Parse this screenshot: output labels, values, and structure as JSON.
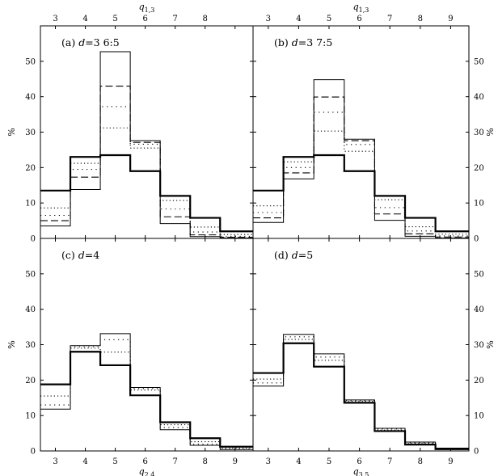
{
  "chart_data": [
    {
      "type": "step",
      "panel_label": "(a) d=3 6:5",
      "label_prefix": "(a) ",
      "label_var": "d",
      "label_rest": "=3 6:5",
      "x_ticks": [
        3,
        4,
        5,
        6,
        7,
        8
      ],
      "x_ticks_top": [
        3,
        4,
        5,
        6,
        7,
        8
      ],
      "top_xlabel": "q",
      "top_xlabel_sub": "1,3",
      "ylabel": "%",
      "ylim": [
        0,
        60
      ],
      "y_ticks": [
        0,
        10,
        20,
        30,
        40,
        50
      ],
      "bins": [
        3,
        4,
        5,
        6,
        7,
        8,
        9
      ],
      "series": [
        {
          "style": "thick",
          "values": [
            13.5,
            23,
            23.5,
            19,
            12,
            5.8,
            2
          ]
        },
        {
          "style": "dotted",
          "values": [
            8.6,
            21.2,
            31.2,
            25.5,
            10.7,
            3.2,
            1.1
          ]
        },
        {
          "style": "dotted2",
          "values": [
            6.5,
            19.5,
            37.2,
            26.6,
            8.3,
            1.8,
            0.6
          ]
        },
        {
          "style": "dashed",
          "values": [
            5,
            17.3,
            43,
            27.1,
            6.1,
            1,
            0.3
          ]
        },
        {
          "style": "thin",
          "values": [
            3.5,
            13.8,
            52.7,
            27.6,
            4.2,
            0.5,
            0.1
          ]
        }
      ]
    },
    {
      "type": "step",
      "panel_label": "(b) d=3 7:5",
      "label_prefix": "(b) ",
      "label_var": "d",
      "label_rest": "=3 7:5",
      "x_ticks": [
        3,
        4,
        5,
        6,
        7,
        8,
        9
      ],
      "x_ticks_top": [
        3,
        4,
        5,
        6,
        7,
        8,
        9
      ],
      "top_xlabel": "q",
      "top_xlabel_sub": "1,3",
      "ylabel": "%",
      "ylim": [
        0,
        60
      ],
      "y_ticks": [
        0,
        10,
        20,
        30,
        40,
        50
      ],
      "bins": [
        3,
        4,
        5,
        6,
        7,
        8,
        9
      ],
      "series": [
        {
          "style": "thick",
          "values": [
            13.5,
            23,
            23.5,
            19,
            12,
            5.8,
            2
          ]
        },
        {
          "style": "dotted",
          "values": [
            9.2,
            21.6,
            30.3,
            24.6,
            10.9,
            3.3,
            1.2
          ]
        },
        {
          "style": "dotted2",
          "values": [
            7.3,
            20,
            35.6,
            26.5,
            8.7,
            2.1,
            0.7
          ]
        },
        {
          "style": "dashed",
          "values": [
            5.8,
            18.5,
            39.9,
            27.6,
            6.9,
            1.3,
            0.4
          ]
        },
        {
          "style": "thin",
          "values": [
            4.5,
            16.8,
            44.8,
            28,
            5.1,
            0.6,
            0.1
          ]
        }
      ]
    },
    {
      "type": "step",
      "panel_label": "(c) d=4",
      "label_prefix": "(c) ",
      "label_var": "d",
      "label_rest": "=4",
      "x_ticks": [
        3,
        4,
        5,
        6,
        7,
        8,
        9
      ],
      "xlabel": "q",
      "xlabel_sub": "2,4",
      "ylabel": "%",
      "ylim": [
        0,
        60
      ],
      "y_ticks": [
        0,
        10,
        20,
        30,
        40,
        50
      ],
      "bins": [
        3,
        4,
        5,
        6,
        7,
        8,
        9
      ],
      "series": [
        {
          "style": "thick",
          "values": [
            18.8,
            28,
            24.2,
            15.7,
            8.1,
            3.6,
            1.2
          ]
        },
        {
          "style": "dotted",
          "values": [
            15.5,
            29,
            27.9,
            17.2,
            7.4,
            2.6,
            0.8
          ]
        },
        {
          "style": "dotted2",
          "values": [
            13,
            29.4,
            31.4,
            17.6,
            6.6,
            1.9,
            0.5
          ]
        },
        {
          "style": "thin",
          "values": [
            11.8,
            29.7,
            33.1,
            17.9,
            6,
            1.6,
            0.4
          ]
        }
      ]
    },
    {
      "type": "step",
      "panel_label": "(d) d=5",
      "label_prefix": "(d) ",
      "label_var": "d",
      "label_rest": "=5",
      "x_ticks": [
        3,
        4,
        5,
        6,
        7,
        8,
        9
      ],
      "xlabel": "q",
      "xlabel_sub": "3,5",
      "ylabel": "%",
      "ylim": [
        0,
        60
      ],
      "y_ticks": [
        0,
        10,
        20,
        30,
        40,
        50
      ],
      "bins": [
        3,
        4,
        5,
        6,
        7,
        8,
        9
      ],
      "series": [
        {
          "style": "thick",
          "values": [
            22,
            30.4,
            23.8,
            13.6,
            5.6,
            1.8,
            0.5
          ]
        },
        {
          "style": "dotted",
          "values": [
            20.3,
            31.5,
            25.6,
            14,
            5.9,
            2.1,
            0.6
          ]
        },
        {
          "style": "dotted2",
          "values": [
            19.2,
            32.2,
            26.5,
            14.2,
            6.2,
            2.3,
            0.7
          ]
        },
        {
          "style": "thin",
          "values": [
            18.3,
            32.9,
            27.4,
            14.4,
            6.4,
            2.5,
            0.8
          ]
        }
      ]
    }
  ]
}
